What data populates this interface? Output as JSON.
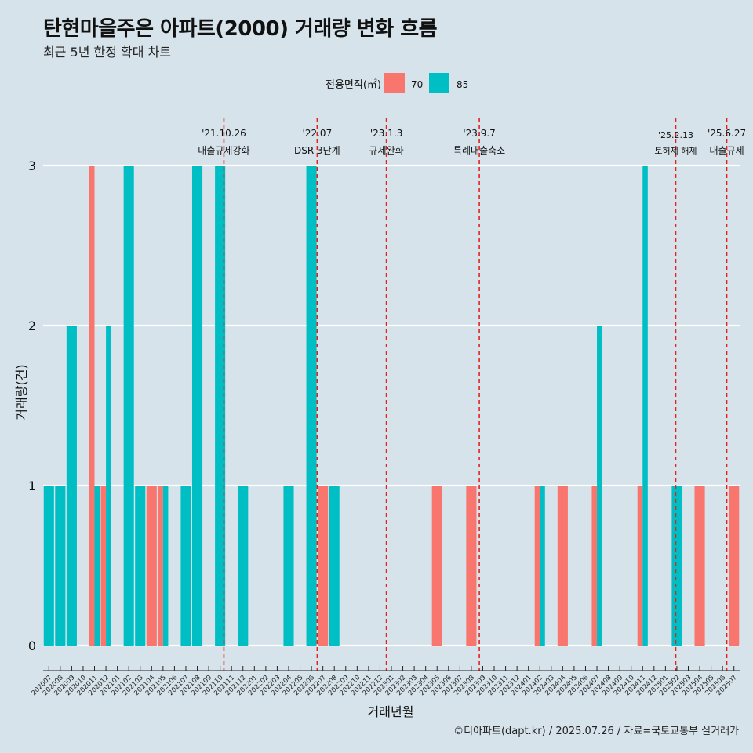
{
  "title": "탄현마을주은 아파트(2000) 거래량 변화 흐름",
  "subtitle": "최근 5년 한정 확대 차트",
  "caption": "©디아파트(dapt.kr) / 2025.07.26 / 자료=국토교통부 실거래가",
  "colors": {
    "background": "#d6e3ea",
    "series70": "#f8766d",
    "series85": "#00bfc4",
    "eventLine": "#e8201c",
    "grid": "#ffffff"
  },
  "chart_data": {
    "type": "bar",
    "xlabel": "거래년월",
    "ylabel": "거래량(건)",
    "ylim": [
      0,
      3
    ],
    "yticks": [
      0,
      1,
      2,
      3
    ],
    "legend": {
      "title": "전용면적(㎡)",
      "placement": "top"
    },
    "categories": [
      "202007",
      "202008",
      "202009",
      "202010",
      "202011",
      "202012",
      "202101",
      "202102",
      "202103",
      "202104",
      "202105",
      "202106",
      "202107",
      "202108",
      "202109",
      "202110",
      "202111",
      "202112",
      "202201",
      "202202",
      "202203",
      "202204",
      "202205",
      "202206",
      "202207",
      "202208",
      "202209",
      "202210",
      "202211",
      "202212",
      "202301",
      "202302",
      "202303",
      "202304",
      "202305",
      "202306",
      "202307",
      "202308",
      "202309",
      "202310",
      "202311",
      "202312",
      "202401",
      "202402",
      "202403",
      "202404",
      "202405",
      "202406",
      "202407",
      "202408",
      "202409",
      "202410",
      "202411",
      "202412",
      "202501",
      "202502",
      "202503",
      "202504",
      "202505",
      "202506",
      "202507"
    ],
    "series": [
      {
        "name": "70",
        "color": "#f8766d",
        "values": [
          0,
          0,
          0,
          0,
          3,
          1,
          0,
          0,
          0,
          1,
          1,
          0,
          0,
          0,
          0,
          0,
          0,
          0,
          0,
          0,
          0,
          0,
          0,
          0,
          1,
          0,
          0,
          0,
          0,
          0,
          0,
          0,
          0,
          0,
          1,
          0,
          0,
          1,
          0,
          0,
          0,
          0,
          0,
          1,
          0,
          1,
          0,
          0,
          1,
          0,
          0,
          0,
          1,
          0,
          0,
          0,
          0,
          1,
          0,
          0,
          1
        ]
      },
      {
        "name": "85",
        "color": "#00bfc4",
        "values": [
          1,
          1,
          2,
          0,
          1,
          2,
          0,
          3,
          1,
          0,
          1,
          0,
          1,
          3,
          0,
          3,
          0,
          1,
          0,
          0,
          0,
          1,
          0,
          3,
          0,
          1,
          0,
          0,
          0,
          0,
          0,
          0,
          0,
          0,
          0,
          0,
          0,
          0,
          0,
          0,
          0,
          0,
          0,
          1,
          0,
          0,
          0,
          0,
          2,
          0,
          0,
          0,
          3,
          0,
          0,
          1,
          0,
          0,
          0,
          0,
          0
        ]
      }
    ],
    "events": [
      {
        "date": "'21.10.26",
        "label": "대출규제강화",
        "month": "202110",
        "offset": 0.83
      },
      {
        "date": "'22.07",
        "label": "DSR 3단계",
        "month": "202207",
        "offset": 0.0
      },
      {
        "date": "'23.1.3",
        "label": "규제완화",
        "month": "202301",
        "offset": 0.06
      },
      {
        "date": "'23.9.7",
        "label": "특례대출축소",
        "month": "202309",
        "offset": 0.2
      },
      {
        "date": "'25.2.13",
        "label": "토허제 해제",
        "month": "202502",
        "offset": 0.4
      },
      {
        "date": "'25.6.27",
        "label": "대출규제",
        "month": "202506",
        "offset": 0.87
      }
    ]
  }
}
